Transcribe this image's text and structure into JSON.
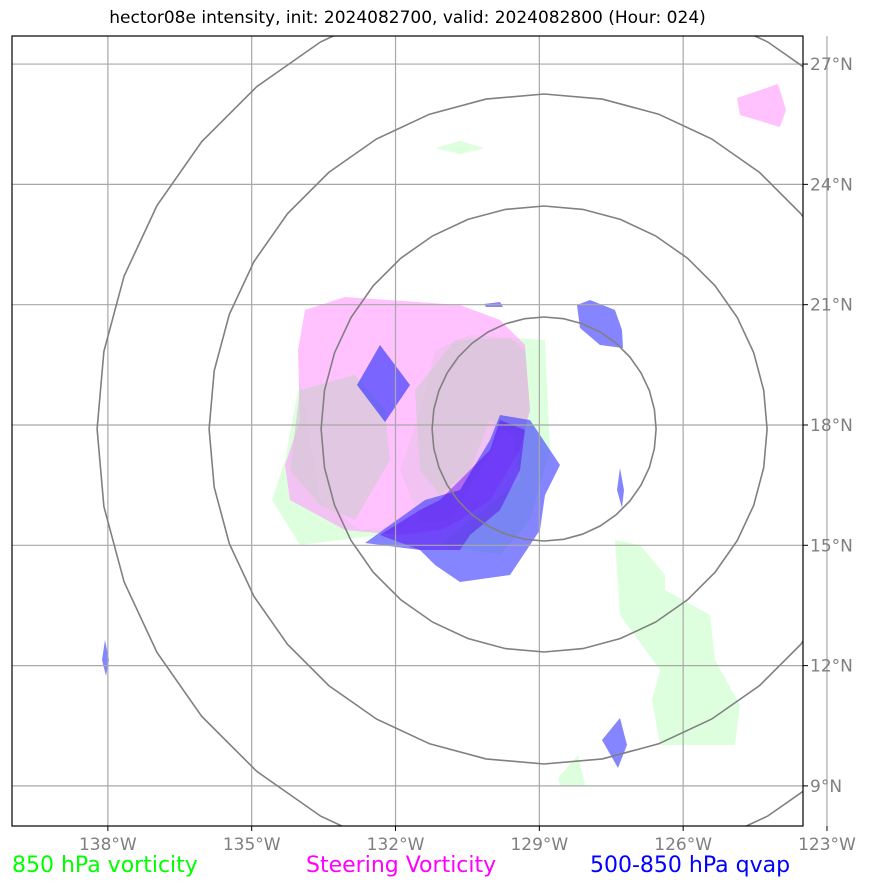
{
  "title": "hector08e intensity, init: 2024082700, valid: 2024082800 (Hour: 024)",
  "map": {
    "extent": {
      "lon": [
        -140,
        -123.5
      ],
      "lat": [
        8,
        27.7
      ]
    },
    "lon_ticks": [
      {
        "value": -138,
        "label": "138°W"
      },
      {
        "value": -135,
        "label": "135°W"
      },
      {
        "value": -132,
        "label": "132°W"
      },
      {
        "value": -129,
        "label": "129°W"
      },
      {
        "value": -126,
        "label": "126°W"
      },
      {
        "value": -123,
        "label": "123°W"
      }
    ],
    "lat_ticks": [
      {
        "value": 9,
        "label": "9°N"
      },
      {
        "value": 12,
        "label": "12°N"
      },
      {
        "value": 15,
        "label": "15°N"
      },
      {
        "value": 18,
        "label": "18°N"
      },
      {
        "value": 21,
        "label": "21°N"
      },
      {
        "value": 24,
        "label": "24°N"
      },
      {
        "value": 27,
        "label": "27°N"
      }
    ],
    "grid": true,
    "range_rings_center": {
      "lon": -128.9,
      "lat": 17.9
    }
  },
  "legend": [
    {
      "label": "850 hPa vorticity",
      "color": "#00ff00"
    },
    {
      "label": "Steering Vorticity",
      "color": "#ff00ff"
    },
    {
      "label": "500-850 hPa qvap",
      "color": "#0000ff"
    }
  ],
  "layers": {
    "vort850_color": "#00ff00",
    "steering_color": "#ff00ff",
    "qvap_color": "#0000ff"
  }
}
